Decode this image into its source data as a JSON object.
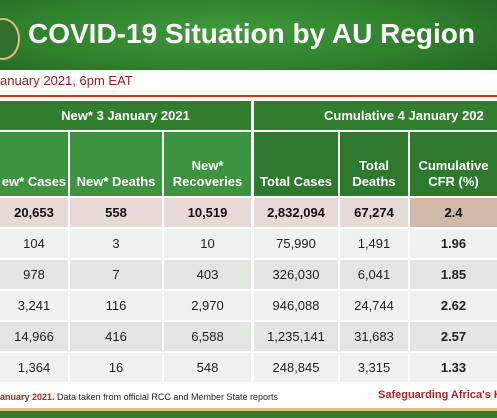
{
  "header": {
    "title": "COVID-19 Situation by AU Region",
    "subtitle": "anuary 2021, 6pm EAT"
  },
  "groups": {
    "left": "New* 3 January 2021",
    "right": "Cumulative 4 January 202"
  },
  "columns": [
    "ew* Cases",
    "New* Deaths",
    "New* Recoveries",
    "Total Cases",
    "Total Deaths",
    "Cumulative CFR (%)"
  ],
  "column_lines": {
    "c1": [
      "ew* Cases"
    ],
    "c2": [
      "New* Deaths"
    ],
    "c3": [
      "New*",
      "Recoveries"
    ],
    "c4": [
      "Total Cases"
    ],
    "c5": [
      "Total",
      "Deaths"
    ],
    "c6": [
      "Cumulative",
      "CFR (%)"
    ]
  },
  "rows": [
    [
      "20,653",
      "558",
      "10,519",
      "2,832,094",
      "67,274",
      "2.4"
    ],
    [
      "104",
      "3",
      "10",
      "75,990",
      "1,491",
      "1.96"
    ],
    [
      "978",
      "7",
      "403",
      "326,030",
      "6,041",
      "1.85"
    ],
    [
      "3,241",
      "116",
      "2,970",
      "946,088",
      "24,744",
      "2.62"
    ],
    [
      "14,966",
      "416",
      "6,588",
      "1,235,141",
      "31,683",
      "2.57"
    ],
    [
      "1,364",
      "16",
      "548",
      "248,845",
      "3,315",
      "1.33"
    ]
  ],
  "footer": {
    "date_fragment": "anuary 2021.",
    "note": " Data taken from official RCC and Member State reports",
    "tagline": "Safeguarding Africa's Heal"
  },
  "colors": {
    "green": "#2f7f2c",
    "accent_red": "#b22222"
  }
}
